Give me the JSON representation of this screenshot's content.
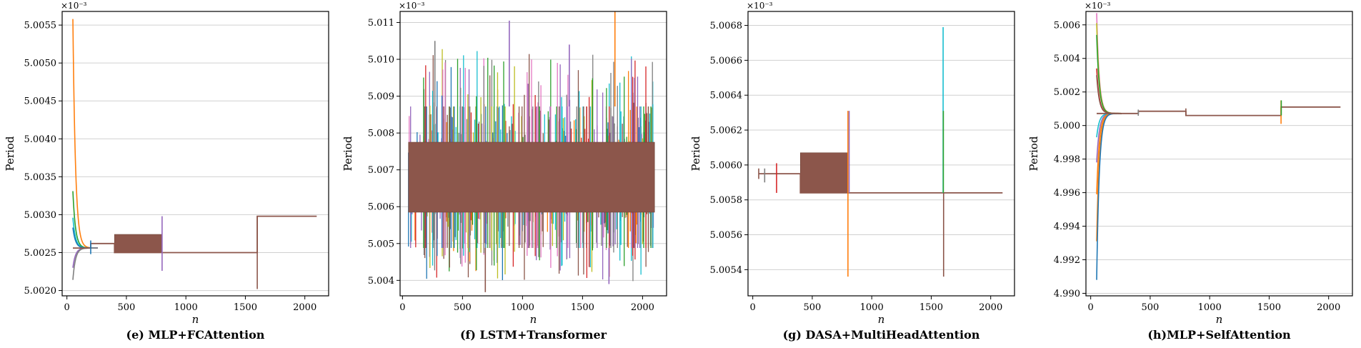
{
  "figure": {
    "multiplier_label": "×10⁻³",
    "ylabel": "Period",
    "xlabel": "n"
  },
  "palette": [
    "#1f77b4",
    "#ff7f0e",
    "#2ca02c",
    "#d62728",
    "#9467bd",
    "#8c564b",
    "#e377c2",
    "#7f7f7f",
    "#bcbd22",
    "#17becf"
  ],
  "chart_data": [
    {
      "type": "line",
      "caption": "(e) MLP+FCAttention",
      "xlim": [
        -40,
        2200
      ],
      "ylim": [
        5.00193,
        5.00568
      ],
      "xticks": [
        0,
        500,
        1000,
        1500,
        2000
      ],
      "yticks": [
        5.002,
        5.0025,
        5.003,
        5.0035,
        5.004,
        5.0045,
        5.005,
        5.0055
      ],
      "ytick_labels": [
        "5.0020",
        "5.0025",
        "5.0030",
        "5.0035",
        "5.0040",
        "5.0045",
        "5.0050",
        "5.0055"
      ],
      "final_value": 5.00298,
      "segments": [
        {
          "x": [
            50,
            200
          ],
          "y": 5.00256
        },
        {
          "x": [
            200,
            400
          ],
          "y": 5.00262
        },
        {
          "x": [
            400,
            800
          ],
          "y": 5.0025
        },
        {
          "x": [
            800,
            1600
          ],
          "y": 5.0025
        },
        {
          "x": [
            1600,
            2100
          ],
          "y": 5.00298
        }
      ],
      "band": {
        "x": [
          400,
          800
        ],
        "y": [
          5.0025,
          5.00274
        ]
      },
      "transients": [
        {
          "y0": 5.00558,
          "color": 1
        },
        {
          "y0": 5.00331,
          "color": 2
        },
        {
          "y0": 5.00296,
          "color": 9
        },
        {
          "y0": 5.00283,
          "color": 0
        },
        {
          "y0": 5.0023,
          "color": 4
        },
        {
          "y0": 5.00214,
          "color": 7
        }
      ],
      "spikes": [
        {
          "x": 200,
          "y": [
            5.00248,
            5.00266
          ],
          "color": 0
        },
        {
          "x": 800,
          "y": [
            5.00226,
            5.00298
          ],
          "color": 4
        },
        {
          "x": 1600,
          "y": [
            5.00202,
            5.00298
          ],
          "color": 5
        }
      ]
    },
    {
      "type": "line",
      "caption": "(f) LSTM+Transformer",
      "xlim": [
        -20,
        2200
      ],
      "ylim": [
        5.00358,
        5.0113
      ],
      "xticks": [
        0,
        500,
        1000,
        1500,
        2000
      ],
      "yticks": [
        5.004,
        5.005,
        5.006,
        5.007,
        5.008,
        5.009,
        5.01,
        5.011
      ],
      "ytick_labels": [
        "5.004",
        "5.005",
        "5.006",
        "5.007",
        "5.008",
        "5.009",
        "5.010",
        "5.011"
      ],
      "noise": {
        "x": [
          50,
          2100
        ],
        "y": [
          5.00488,
          5.00872
        ]
      },
      "band": {
        "x": [
          50,
          2100
        ],
        "y": [
          5.00585,
          5.00775
        ]
      },
      "peak_spikes": [
        {
          "x": 890,
          "y": 5.01105,
          "color": 4
        },
        {
          "x": 1770,
          "y": 5.01155,
          "color": 1
        },
        {
          "x": 270,
          "y": 5.0105,
          "color": 7
        },
        {
          "x": 690,
          "y": 5.00368,
          "color": 5
        },
        {
          "x": 1390,
          "y": 5.0104,
          "color": 4
        },
        {
          "x": 1720,
          "y": 5.0039,
          "color": 4
        }
      ]
    },
    {
      "type": "line",
      "caption": "(g) DASA+MultiHeadAttention",
      "xlim": [
        -40,
        2200
      ],
      "ylim": [
        5.00525,
        5.00688
      ],
      "xticks": [
        0,
        500,
        1000,
        1500,
        2000
      ],
      "yticks": [
        5.0054,
        5.0056,
        5.0058,
        5.006,
        5.0062,
        5.0064,
        5.0066,
        5.0068
      ],
      "ytick_labels": [
        "5.0054",
        "5.0056",
        "5.0058",
        "5.0060",
        "5.0062",
        "5.0064",
        "5.0066",
        "5.0068"
      ],
      "final_value": 5.00584,
      "segments": [
        {
          "x": [
            50,
            100
          ],
          "y": 5.00595
        },
        {
          "x": [
            100,
            200
          ],
          "y": 5.00595
        },
        {
          "x": [
            200,
            400
          ],
          "y": 5.00595
        },
        {
          "x": [
            400,
            800
          ],
          "y": 5.00584
        },
        {
          "x": [
            800,
            1600
          ],
          "y": 5.00584
        },
        {
          "x": [
            1600,
            2100
          ],
          "y": 5.00584
        }
      ],
      "band": {
        "x": [
          400,
          800
        ],
        "y": [
          5.00584,
          5.00607
        ]
      },
      "spikes": [
        {
          "x": 50,
          "y": [
            5.00592,
            5.00598
          ],
          "color": 5
        },
        {
          "x": 100,
          "y": [
            5.0059,
            5.00598
          ],
          "color": 7
        },
        {
          "x": 200,
          "y": [
            5.00584,
            5.00601
          ],
          "color": 3
        },
        {
          "x": 800,
          "y": [
            5.00536,
            5.00631
          ],
          "color": 1
        },
        {
          "x": 810,
          "y": [
            5.00584,
            5.00631
          ],
          "color": 4
        },
        {
          "x": 1600,
          "y": [
            5.00584,
            5.00679
          ],
          "color": 9
        },
        {
          "x": 1602,
          "y": [
            5.00584,
            5.00631
          ],
          "color": 2
        },
        {
          "x": 1604,
          "y": [
            5.00536,
            5.00584
          ],
          "color": 5
        }
      ]
    },
    {
      "type": "line",
      "caption": "(h)MLP+SelfAttention",
      "xlim": [
        -40,
        2200
      ],
      "ylim": [
        4.98985,
        5.0068
      ],
      "xticks": [
        0,
        500,
        1000,
        1500,
        2000
      ],
      "yticks": [
        4.99,
        4.992,
        4.994,
        4.996,
        4.998,
        5.0,
        5.002,
        5.004,
        5.006
      ],
      "ytick_labels": [
        "4.990",
        "4.992",
        "4.994",
        "4.996",
        "4.998",
        "5.000",
        "5.002",
        "5.004",
        "5.006"
      ],
      "final_value": 5.0011,
      "segments": [
        {
          "x": [
            50,
            400
          ],
          "y": 5.00072
        },
        {
          "x": [
            400,
            800
          ],
          "y": 5.00085
        },
        {
          "x": [
            800,
            1600
          ],
          "y": 5.0006
        },
        {
          "x": [
            1600,
            2100
          ],
          "y": 5.0011
        }
      ],
      "transients": [
        {
          "y0": 5.0067,
          "color": 6
        },
        {
          "y0": 5.0061,
          "color": 8
        },
        {
          "y0": 5.0054,
          "color": 2
        },
        {
          "y0": 5.0034,
          "color": 3
        },
        {
          "y0": 5.003,
          "color": 5
        },
        {
          "y0": 4.9978,
          "color": 4
        },
        {
          "y0": 4.9959,
          "color": 1
        },
        {
          "y0": 4.9931,
          "color": 1
        },
        {
          "y0": 4.9908,
          "color": 0
        },
        {
          "y0": 4.9993,
          "color": 9
        }
      ],
      "spikes": [
        {
          "x": 400,
          "y": [
            5.00058,
            5.00095
          ],
          "color": 7
        },
        {
          "x": 800,
          "y": [
            5.0006,
            5.00102
          ],
          "color": 5
        },
        {
          "x": 1600,
          "y": [
            5.0001,
            5.0015
          ],
          "color": 1
        },
        {
          "x": 1602,
          "y": [
            5.0006,
            5.0015
          ],
          "color": 2
        }
      ]
    }
  ]
}
